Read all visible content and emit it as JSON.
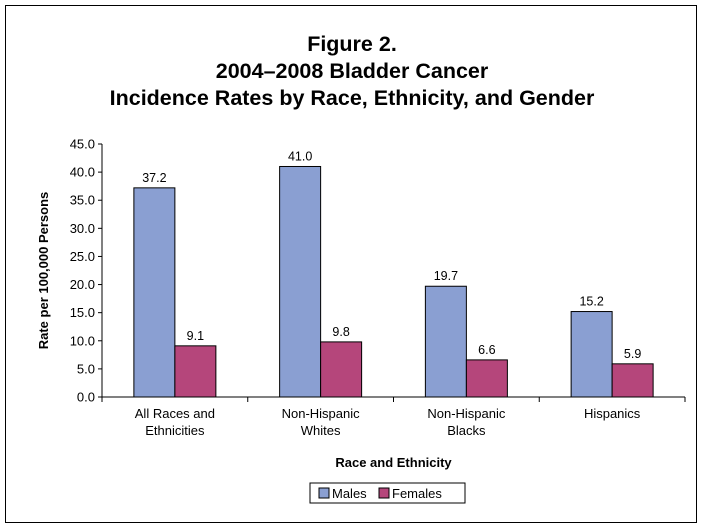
{
  "chart_data": {
    "type": "bar",
    "title_lines": [
      "Figure 2.",
      "2004–2008 Bladder Cancer",
      "Incidence Rates by Race, Ethnicity, and Gender"
    ],
    "categories": [
      [
        "All Races and",
        "Ethnicities"
      ],
      [
        "Non-Hispanic",
        "Whites"
      ],
      [
        "Non-Hispanic",
        "Blacks"
      ],
      [
        "Hispanics"
      ]
    ],
    "series": [
      {
        "name": "Males",
        "color": "#8a9fd2",
        "values": [
          37.2,
          41.0,
          19.7,
          15.2
        ],
        "labels": [
          "37.2",
          "41.0",
          "19.7",
          "15.2"
        ]
      },
      {
        "name": "Females",
        "color": "#b5467b",
        "values": [
          9.1,
          9.8,
          6.6,
          5.9
        ],
        "labels": [
          "9.1",
          "9.8",
          "6.6",
          "5.9"
        ]
      }
    ],
    "xlabel": "Race and Ethnicity",
    "ylabel": "Rate per 100,000 Persons",
    "ylim": [
      0,
      45
    ],
    "yticks": [
      "0.0",
      "5.0",
      "10.0",
      "15.0",
      "20.0",
      "25.0",
      "30.0",
      "35.0",
      "40.0",
      "45.0"
    ],
    "legend_position": "bottom",
    "grid": false
  }
}
